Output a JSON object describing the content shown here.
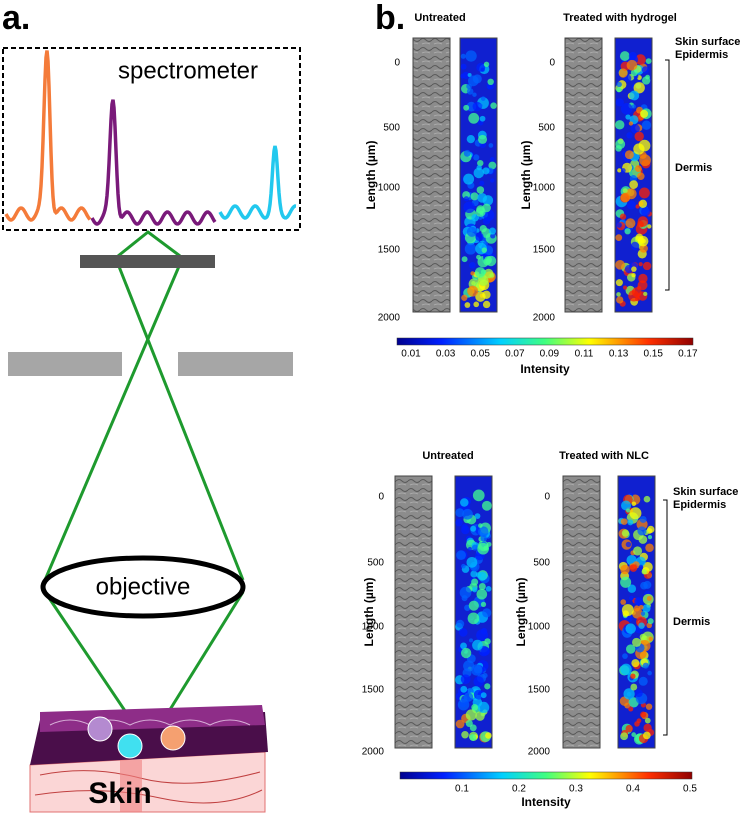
{
  "panel_a": {
    "label": "a.",
    "spectrometer": "spectrometer",
    "objective": "objective",
    "sample": "Skin"
  },
  "panel_b": {
    "label": "b.",
    "groups": [
      {
        "headers": [
          "Untreated",
          "Treated with hydrogel"
        ],
        "y_axis_label": "Length (µm)",
        "y_ticks": [
          "0",
          "500",
          "1000",
          "1500",
          "2000"
        ],
        "annotations": [
          "Skin surface",
          "Epidermis",
          "Dermis"
        ],
        "colorbar_ticks": [
          "0.01",
          "0.03",
          "0.05",
          "0.07",
          "0.09",
          "0.11",
          "0.13",
          "0.15",
          "0.17"
        ],
        "colorbar_label": "Intensity"
      },
      {
        "headers": [
          "Untreated",
          "Treated with NLC"
        ],
        "y_axis_label": "Length (µm)",
        "y_ticks": [
          "0",
          "500",
          "1000",
          "1500",
          "2000"
        ],
        "annotations": [
          "Skin surface",
          "Epidermis",
          "Dermis"
        ],
        "colorbar_ticks": [
          "0.1",
          "0.2",
          "0.3",
          "0.4",
          "0.5"
        ],
        "colorbar_label": "Intensity"
      }
    ]
  }
}
